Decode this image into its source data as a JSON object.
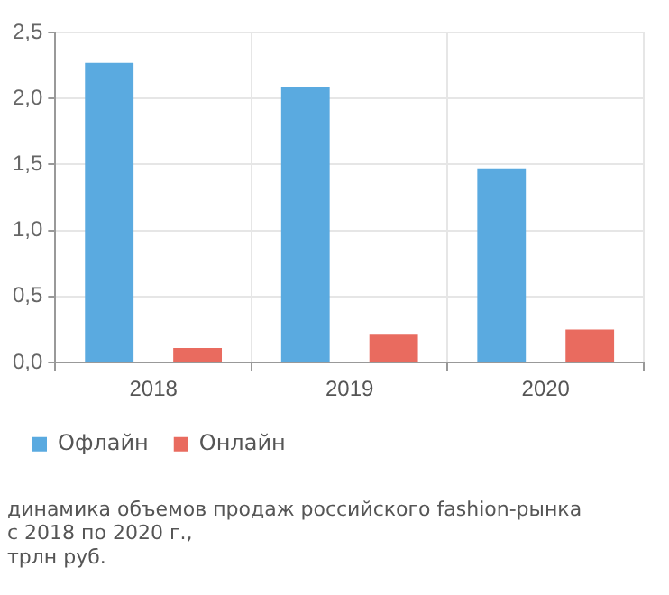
{
  "chart_data": {
    "type": "bar",
    "title": "динамика объемов продаж российского fashion-рынка\nс 2018 по 2020 г.,\nтрлн руб.",
    "categories": [
      "2018",
      "2019",
      "2020"
    ],
    "series": [
      {
        "name": "Офлайн",
        "color": "#5aaae0",
        "values": [
          2.27,
          2.09,
          1.47
        ]
      },
      {
        "name": "Онлайн",
        "color": "#e96b5f",
        "values": [
          0.11,
          0.21,
          0.25
        ]
      }
    ],
    "ylim": [
      0,
      2.5
    ],
    "yticks": [
      {
        "value": 0,
        "label": "0,0"
      },
      {
        "value": 0.5,
        "label": "0,5"
      },
      {
        "value": 1,
        "label": "1,0"
      },
      {
        "value": 1.5,
        "label": "1,5"
      },
      {
        "value": 2,
        "label": "2,0"
      },
      {
        "value": 2.5,
        "label": "2,5"
      }
    ],
    "grid": true,
    "legend": "bottom left"
  }
}
